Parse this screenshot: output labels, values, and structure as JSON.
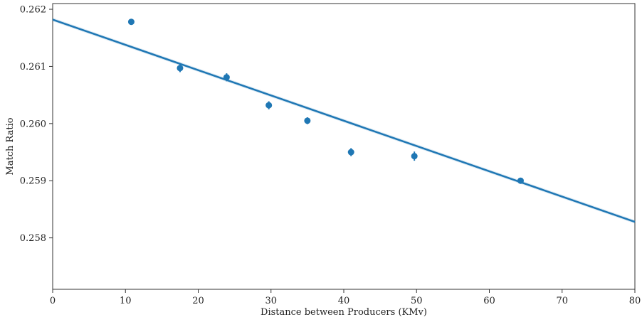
{
  "chart_data": {
    "type": "scatter",
    "title": "",
    "xlabel": "Distance between Producers (KMv)",
    "ylabel": "Match Ratio",
    "xlim": [
      0,
      80
    ],
    "ylim": [
      0.2571,
      0.2621
    ],
    "x_ticks": [
      0,
      10,
      20,
      30,
      40,
      50,
      60,
      70,
      80
    ],
    "y_ticks": [
      0.258,
      0.259,
      0.26,
      0.261,
      0.262
    ],
    "x_tick_labels": [
      "0",
      "10",
      "20",
      "30",
      "40",
      "50",
      "60",
      "70",
      "80"
    ],
    "y_tick_labels": [
      "0.258",
      "0.259",
      "0.260",
      "0.261",
      "0.262"
    ],
    "grid": false,
    "color": "#1f77b4",
    "points": [
      {
        "x": 10.8,
        "y": 0.26178,
        "err": 5e-05
      },
      {
        "x": 17.5,
        "y": 0.26097,
        "err": 7e-05
      },
      {
        "x": 23.9,
        "y": 0.26081,
        "err": 7e-05
      },
      {
        "x": 29.7,
        "y": 0.26032,
        "err": 7e-05
      },
      {
        "x": 35.0,
        "y": 0.26005,
        "err": 6e-05
      },
      {
        "x": 41.0,
        "y": 0.2595,
        "err": 7e-05
      },
      {
        "x": 49.7,
        "y": 0.25943,
        "err": 8e-05
      },
      {
        "x": 64.3,
        "y": 0.259,
        "err": 5e-05
      }
    ],
    "regression_line": {
      "x": [
        0,
        80
      ],
      "y": [
        0.26182,
        0.25828
      ]
    }
  }
}
